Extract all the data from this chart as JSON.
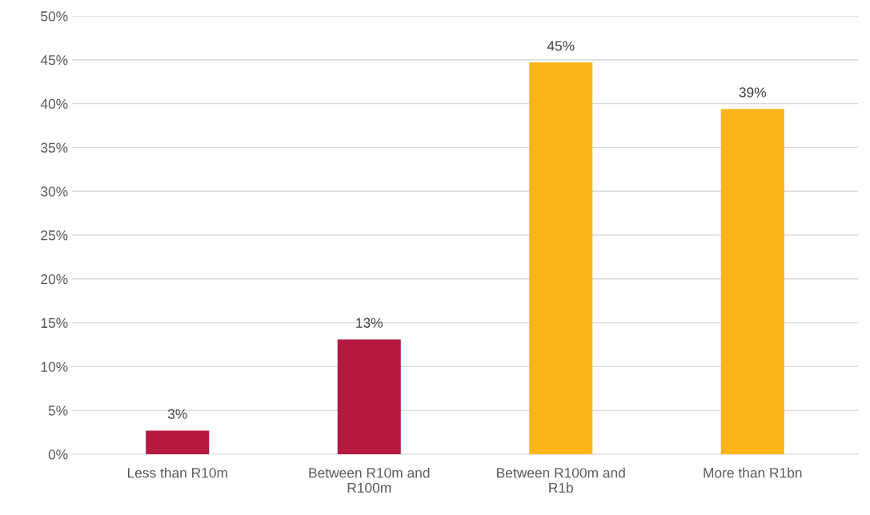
{
  "chart_data": {
    "type": "bar",
    "categories": [
      "Less than R10m",
      "Between R10m and R100m",
      "Between R100m and R1b",
      "More than R1bn"
    ],
    "values": [
      2.7,
      13.1,
      44.7,
      39.4
    ],
    "colors": [
      "#b5193f",
      "#b5193f",
      "#fbb51b",
      "#fbb51b"
    ],
    "value_labels": [
      "3%",
      "13%",
      "45%",
      "39%"
    ],
    "ylim": [
      0,
      50
    ],
    "yticks": [
      {
        "value": 0,
        "label": "0%"
      },
      {
        "value": 5,
        "label": "5%"
      },
      {
        "value": 10,
        "label": "10%"
      },
      {
        "value": 15,
        "label": "15%"
      },
      {
        "value": 20,
        "label": "20%"
      },
      {
        "value": 25,
        "label": "25%"
      },
      {
        "value": 30,
        "label": "30%"
      },
      {
        "value": 35,
        "label": "35%"
      },
      {
        "value": 40,
        "label": "40%"
      },
      {
        "value": 45,
        "label": "45%"
      },
      {
        "value": 50,
        "label": "50%"
      }
    ],
    "grid": "y",
    "legend": false
  }
}
